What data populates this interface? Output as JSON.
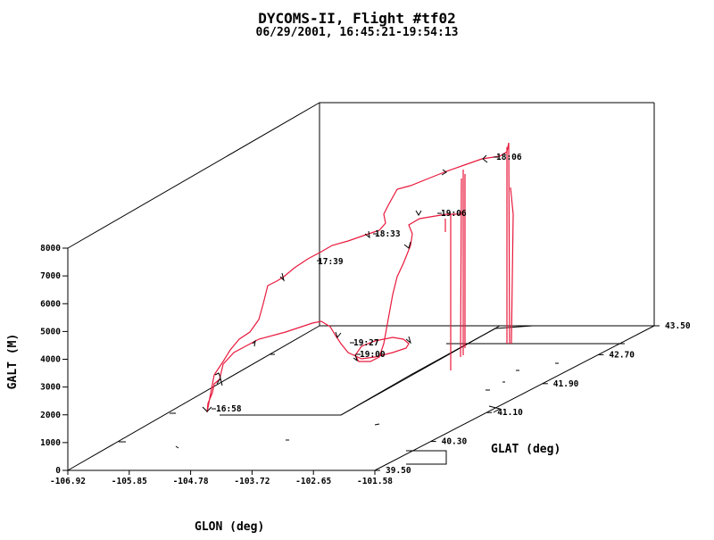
{
  "chart_data": {
    "type": "line",
    "title": "DYCOMS-II, Flight #tf02",
    "subtitle": "06/29/2001, 16:45:21-19:54:13",
    "xlabel": "GLON (deg)",
    "ylabel": "GLAT (deg)",
    "zlabel": "GALT (M)",
    "xlim": [
      -106.92,
      -101.58
    ],
    "ylim": [
      39.5,
      43.5
    ],
    "zlim": [
      0,
      8000
    ],
    "x_ticks": [
      "-106.92",
      "-105.85",
      "-104.78",
      "-103.72",
      "-102.65",
      "-101.58"
    ],
    "y_ticks": [
      "39.50",
      "40.30",
      "41.10",
      "41.90",
      "42.70",
      "43.50"
    ],
    "z_ticks": [
      "0",
      "1000",
      "2000",
      "3000",
      "4000",
      "5000",
      "6000",
      "7000",
      "8000"
    ],
    "series": [
      {
        "color": "#e8193c",
        "points": [
          [
            -104.8,
            40.3,
            2000
          ],
          [
            -104.78,
            40.31,
            2300
          ],
          [
            -104.75,
            40.35,
            2600
          ],
          [
            -104.7,
            40.45,
            3000
          ],
          [
            -104.6,
            40.6,
            3600
          ],
          [
            -104.4,
            40.9,
            4100
          ],
          [
            -104.1,
            41.3,
            4400
          ],
          [
            -103.7,
            41.7,
            4550
          ],
          [
            -103.4,
            42.0,
            4650
          ],
          [
            -103.2,
            42.15,
            4700
          ],
          [
            -103.0,
            42.2,
            4700
          ],
          [
            -102.95,
            42.18,
            4650
          ],
          [
            -102.8,
            42.05,
            4500
          ],
          [
            -102.75,
            41.95,
            4300
          ],
          [
            -102.7,
            41.9,
            4150
          ],
          [
            -102.5,
            41.92,
            4200
          ],
          [
            -102.2,
            41.98,
            4230
          ],
          [
            -102.15,
            42.05,
            4230
          ],
          [
            -102.4,
            42.1,
            4220
          ],
          [
            -102.65,
            42.05,
            4200
          ],
          [
            -102.75,
            42.3,
            5000
          ],
          [
            -102.85,
            42.6,
            6500
          ],
          [
            -102.9,
            42.9,
            7600
          ],
          [
            -102.7,
            43.1,
            7900
          ],
          [
            -102.3,
            43.2,
            8000
          ],
          [
            -101.9,
            43.3,
            8050
          ],
          [
            -101.95,
            43.25,
            8000
          ]
        ]
      }
    ],
    "annotations": [
      "17:39",
      "18:06",
      "18:33",
      "19:00",
      "19:06",
      "19:27",
      "16:58"
    ],
    "grid": false
  }
}
